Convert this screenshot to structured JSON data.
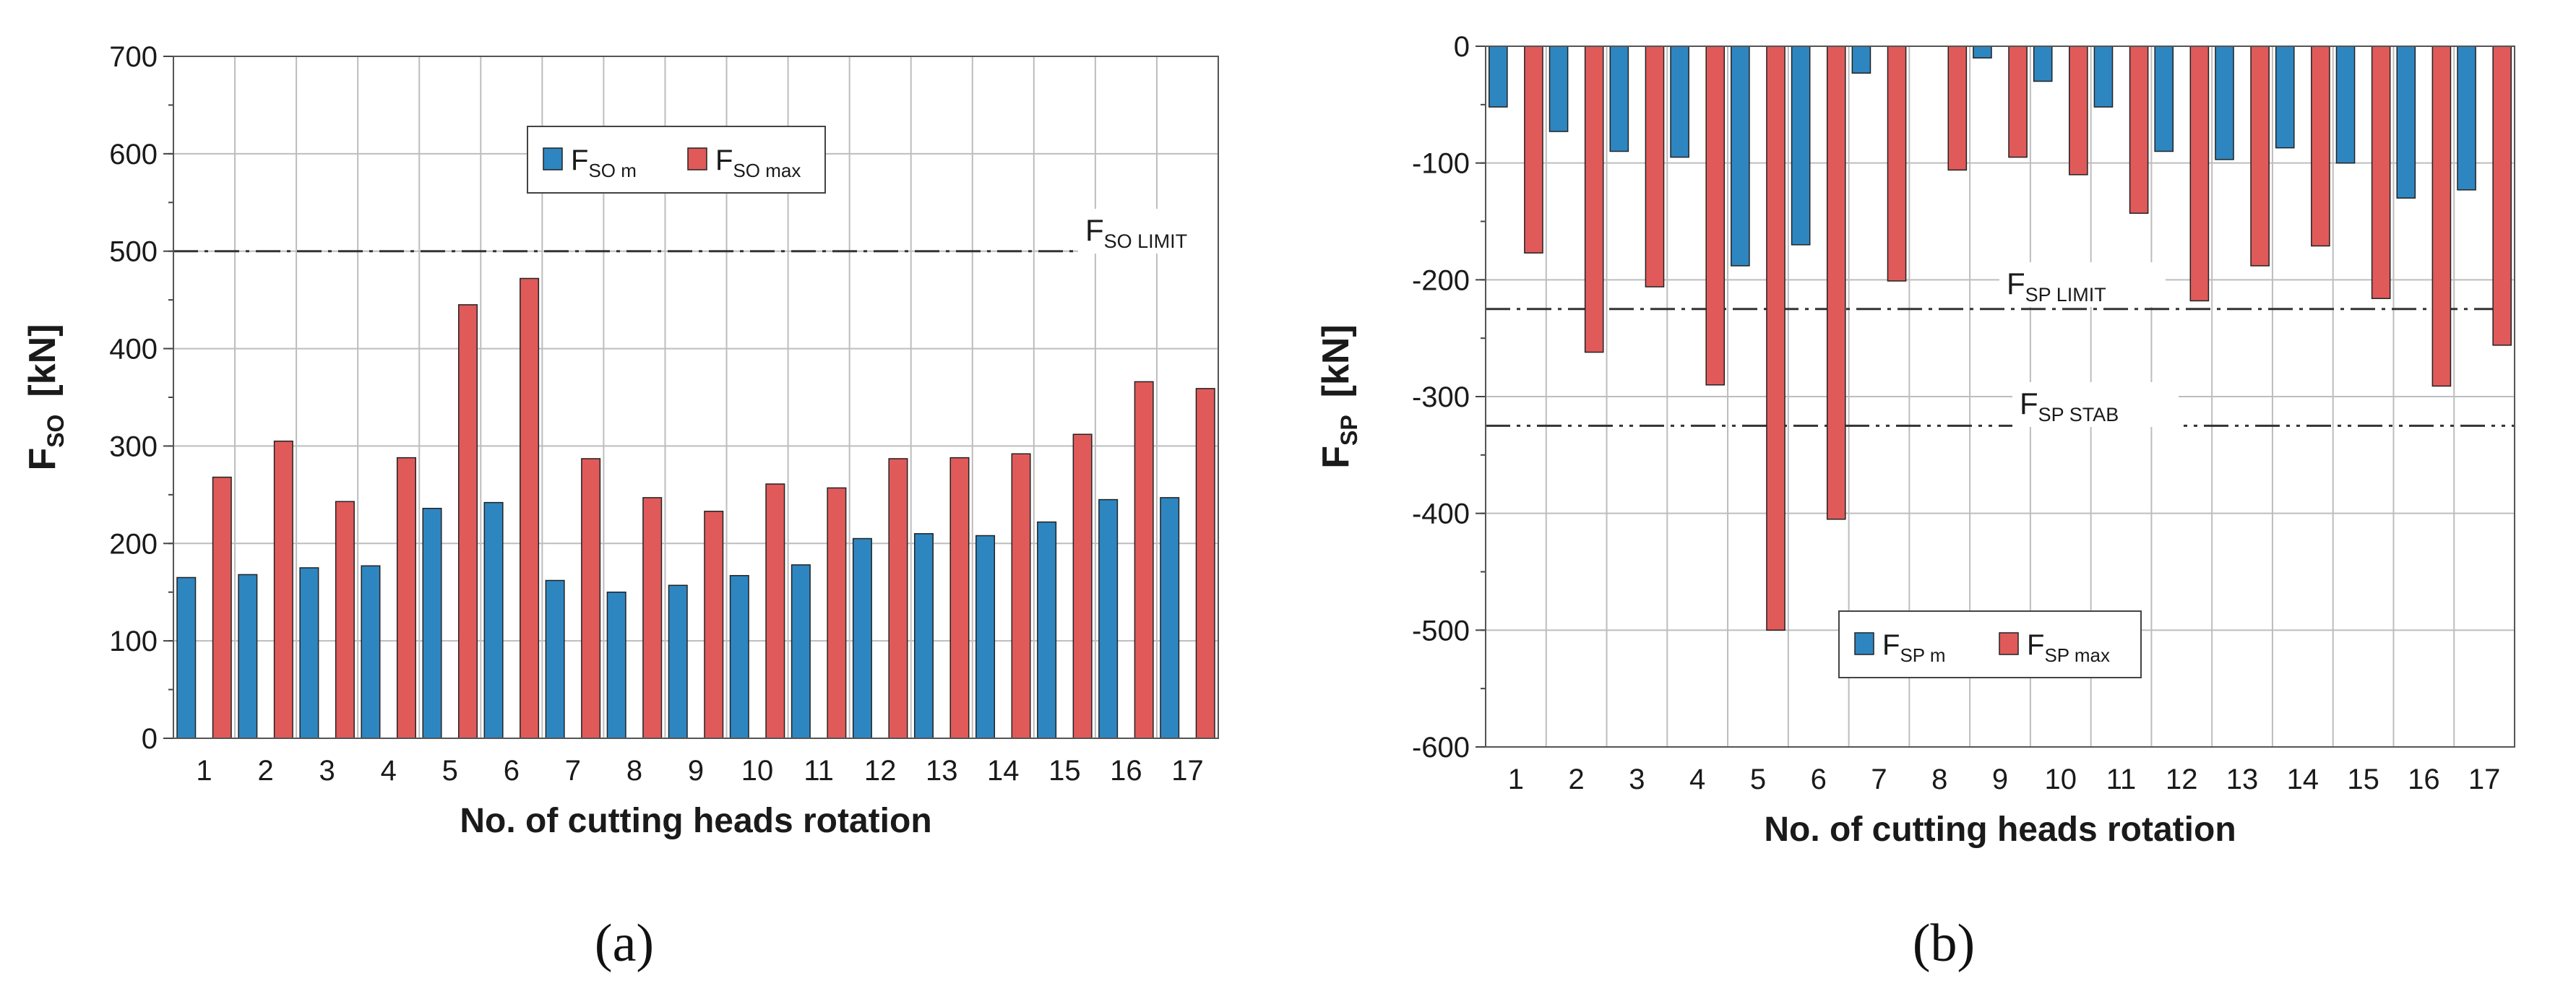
{
  "colors": {
    "mean": "#2E86C1",
    "max": "#E05A5A",
    "outline": "#222222",
    "grid": "#BDBDBD"
  },
  "chart_data": [
    {
      "type": "bar",
      "panel_label": "(a)",
      "categories": [
        "1",
        "2",
        "3",
        "4",
        "5",
        "6",
        "7",
        "8",
        "9",
        "10",
        "11",
        "12",
        "13",
        "14",
        "15",
        "16",
        "17"
      ],
      "series": [
        {
          "name": "F_SO m",
          "base": "F",
          "sub": "SO m",
          "values": [
            165,
            168,
            175,
            177,
            236,
            242,
            162,
            150,
            157,
            167,
            178,
            205,
            210,
            208,
            222,
            245,
            247
          ]
        },
        {
          "name": "F_SO max",
          "base": "F",
          "sub": "SO max",
          "values": [
            268,
            305,
            243,
            288,
            445,
            472,
            287,
            247,
            233,
            261,
            257,
            287,
            288,
            292,
            312,
            366,
            359
          ]
        }
      ],
      "xlabel": "No. of cutting heads rotation",
      "ylabel": {
        "base": "F",
        "sub": "SO",
        "unit": "[kN]"
      },
      "ylim": [
        0,
        700
      ],
      "yticks": [
        "0",
        "100",
        "200",
        "300",
        "400",
        "500",
        "600",
        "700"
      ],
      "legend_position": "top-center",
      "reference_lines": [
        {
          "value": 500,
          "base": "F",
          "sub": "SO LIMIT",
          "style": "dash-dot"
        }
      ],
      "grid": true
    },
    {
      "type": "bar",
      "panel_label": "(b)",
      "categories": [
        "1",
        "2",
        "3",
        "4",
        "5",
        "6",
        "7",
        "8",
        "9",
        "10",
        "11",
        "12",
        "13",
        "14",
        "15",
        "16",
        "17"
      ],
      "series": [
        {
          "name": "F_SP m",
          "base": "F",
          "sub": "SP m",
          "values": [
            -52,
            -73,
            -90,
            -95,
            -188,
            -170,
            -23,
            0,
            -10,
            -30,
            -52,
            -90,
            -97,
            -87,
            -100,
            -130,
            -123
          ]
        },
        {
          "name": "F_SP max",
          "base": "F",
          "sub": "SP max",
          "values": [
            -177,
            -262,
            -206,
            -290,
            -500,
            -405,
            -201,
            -106,
            -95,
            -110,
            -143,
            -218,
            -188,
            -171,
            -216,
            -291,
            -256
          ]
        }
      ],
      "xlabel": "No. of cutting heads rotation",
      "ylabel": {
        "base": "F",
        "sub": "SP",
        "unit": "[kN]"
      },
      "ylim": [
        -600,
        0
      ],
      "yticks": [
        "0",
        "-100",
        "-200",
        "-300",
        "-400",
        "-500",
        "-600"
      ],
      "legend_position": "bottom-center",
      "reference_lines": [
        {
          "value": -225,
          "base": "F",
          "sub": "SP LIMIT",
          "style": "dash-dot"
        },
        {
          "value": -325,
          "base": "F",
          "sub": "SP STAB",
          "style": "dash-dot-dot"
        }
      ],
      "grid": true
    }
  ]
}
